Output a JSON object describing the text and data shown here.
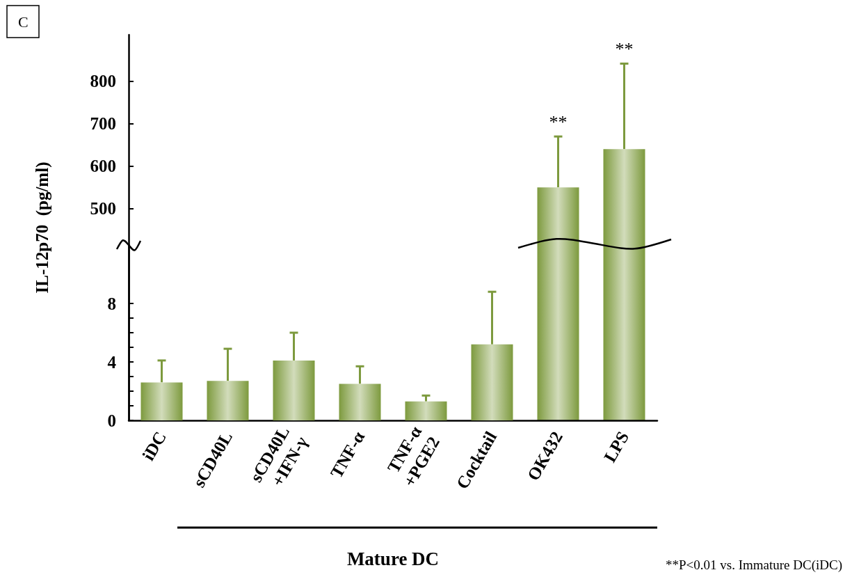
{
  "chart_data": [
    {
      "type": "bar",
      "title": "C",
      "ylabel": "IL-12p70  (pg/ml)",
      "categories": [
        "iDC",
        "sCD40L",
        "sCD40L\n+IFN-γ",
        "TNF-α",
        "TNF-α\n+PGE2",
        "Cocktail",
        "OK432",
        "LPS"
      ],
      "values": [
        null,
        null,
        null,
        null,
        null,
        null,
        550,
        640
      ],
      "errors": [
        null,
        null,
        null,
        null,
        null,
        null,
        [
          550,
          670
        ],
        [
          640,
          842
        ]
      ],
      "color": "#7d9a3e",
      "ylim": [
        0,
        910
      ],
      "yticks": [
        500,
        600,
        700,
        800
      ],
      "tick_labels": "y",
      "annotations": [
        {
          "text": "**",
          "x": "OK432",
          "y": 670
        },
        {
          "text": "**",
          "x": "LPS",
          "y": 842
        }
      ]
    },
    {
      "type": "bar",
      "xlabel": "Mature DC",
      "categories": [
        "iDC",
        "sCD40L",
        "sCD40L\n+IFN-γ",
        "TNF-α",
        "TNF-α\n+PGE2",
        "Cocktail",
        "OK432",
        "LPS"
      ],
      "values": [
        2.6,
        2.7,
        4.1,
        2.5,
        1.3,
        5.2,
        null,
        null
      ],
      "errors": [
        [
          2.6,
          4.1
        ],
        [
          2.7,
          4.9
        ],
        [
          4.1,
          6.0
        ],
        [
          2.5,
          3.7
        ],
        [
          1.3,
          1.7
        ],
        [
          5.2,
          8.8
        ],
        null,
        null
      ],
      "color": "#7d9a3e",
      "ylim": [
        0,
        12
      ],
      "yticks": [
        0,
        {
          "value": 1,
          "label": null
        },
        {
          "value": 2,
          "label": null
        },
        {
          "value": 3,
          "label": null
        },
        4,
        {
          "value": 5,
          "label": null
        },
        {
          "value": 6,
          "label": null
        },
        {
          "value": 7,
          "label": null
        },
        8
      ],
      "annotations": [
        "**P<0.01 vs. Immature DC(iDC)"
      ]
    }
  ]
}
